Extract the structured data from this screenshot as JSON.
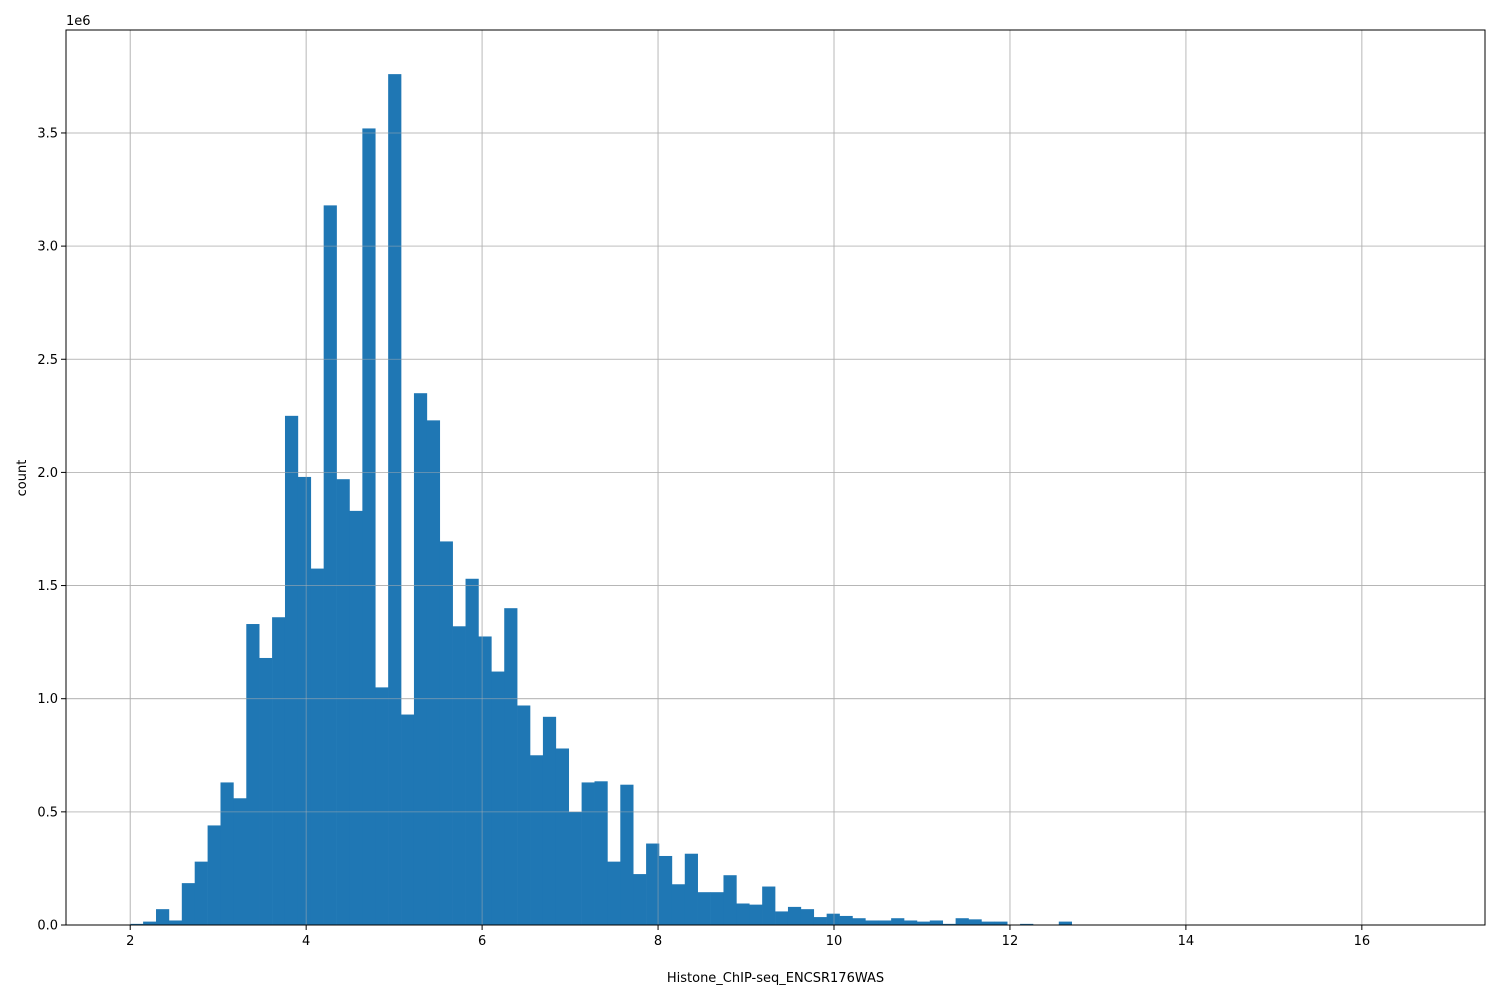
{
  "chart_data": {
    "type": "bar",
    "subtype": "histogram",
    "xlabel": "Histone_ChIP-seq_ENCSR176WAS",
    "ylabel": "count",
    "y_offset_text": "1e6",
    "bin_range": [
      2.0,
      16.66
    ],
    "bins": 100,
    "values_scale": 1000000,
    "values": [
      0.005,
      0.015,
      0.07,
      0.02,
      0.185,
      0.28,
      0.44,
      0.63,
      0.56,
      1.33,
      1.18,
      1.36,
      2.25,
      1.98,
      1.575,
      3.18,
      1.97,
      1.83,
      3.52,
      1.05,
      3.76,
      0.93,
      2.35,
      2.23,
      1.695,
      1.32,
      1.53,
      1.275,
      1.12,
      1.4,
      0.97,
      0.75,
      0.92,
      0.78,
      0.5,
      0.63,
      0.635,
      0.28,
      0.62,
      0.225,
      0.36,
      0.305,
      0.18,
      0.315,
      0.145,
      0.145,
      0.22,
      0.095,
      0.09,
      0.17,
      0.06,
      0.08,
      0.07,
      0.035,
      0.05,
      0.04,
      0.03,
      0.02,
      0.02,
      0.03,
      0.02,
      0.015,
      0.02,
      0.005,
      0.03,
      0.025,
      0.015,
      0.015,
      0.002,
      0.005,
      0.002,
      0.002,
      0.015,
      0.001,
      0.001,
      0.001,
      0.001,
      0.001,
      0.001,
      0.001,
      0.001,
      0.001,
      0.001,
      0.001,
      0.001,
      0.001,
      0.001,
      0.001,
      0.001,
      0.001,
      0.001,
      0.001,
      0.001,
      0.001,
      0.001,
      0.001,
      0.001,
      0.001,
      0.001,
      0.001
    ],
    "xlim": [
      1.27,
      17.4
    ],
    "ylim": [
      0,
      3.955
    ],
    "x_ticks": [
      "2",
      "4",
      "6",
      "8",
      "10",
      "12",
      "14",
      "16"
    ],
    "y_ticks": [
      "0.0",
      "0.5",
      "1.0",
      "1.5",
      "2.0",
      "2.5",
      "3.0",
      "3.5"
    ],
    "grid": true,
    "bar_color": "#1f77b4",
    "grid_color": "#b0b0b0"
  }
}
